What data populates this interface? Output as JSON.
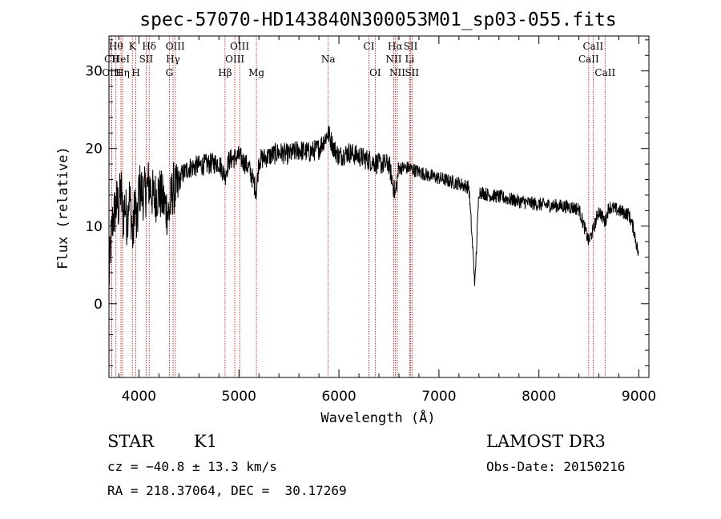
{
  "chart_data": {
    "type": "line",
    "title": "spec-57070-HD143840N300053M01_sp03-055.fits",
    "xlabel": "Wavelength (Å)",
    "ylabel": "Flux (relative)",
    "xlim": [
      3700,
      9100
    ],
    "ylim": [
      -9.5,
      34.5
    ],
    "xticks": [
      4000,
      5000,
      6000,
      7000,
      8000,
      9000
    ],
    "yticks": [
      0,
      10,
      20,
      30
    ],
    "series": [
      {
        "name": "flux",
        "color": "#000000",
        "x": [
          3700,
          3720,
          3740,
          3760,
          3780,
          3800,
          3820,
          3840,
          3860,
          3880,
          3900,
          3920,
          3940,
          3960,
          3980,
          4000,
          4050,
          4100,
          4150,
          4200,
          4250,
          4300,
          4340,
          4380,
          4420,
          4500,
          4600,
          4700,
          4800,
          4861,
          4900,
          5000,
          5100,
          5175,
          5200,
          5300,
          5400,
          5500,
          5600,
          5700,
          5800,
          5893,
          5950,
          6000,
          6100,
          6200,
          6300,
          6400,
          6500,
          6563,
          6600,
          6700,
          6800,
          6900,
          7000,
          7100,
          7200,
          7300,
          7360,
          7400,
          7500,
          7600,
          7700,
          7800,
          7900,
          8000,
          8100,
          8200,
          8300,
          8400,
          8498,
          8542,
          8600,
          8662,
          8700,
          8800,
          8900,
          8950,
          9000
        ],
        "values": [
          3.0,
          8.0,
          11.0,
          12.0,
          13.0,
          12.5,
          15.0,
          11.0,
          13.0,
          10.5,
          14.0,
          12.0,
          8.0,
          14.0,
          9.0,
          15.0,
          14.0,
          15.5,
          13.5,
          14.5,
          13.0,
          11.5,
          15.0,
          14.5,
          16.5,
          17.5,
          17.8,
          18.0,
          18.2,
          16.5,
          18.5,
          19.0,
          17.5,
          14.5,
          18.5,
          19.0,
          19.5,
          19.2,
          19.8,
          19.5,
          20.0,
          22.0,
          20.0,
          19.0,
          19.5,
          19.0,
          18.5,
          18.0,
          18.0,
          14.0,
          17.5,
          17.5,
          17.0,
          16.5,
          16.2,
          15.8,
          15.5,
          15.0,
          2.5,
          14.5,
          14.0,
          13.8,
          13.5,
          13.2,
          13.0,
          12.8,
          12.7,
          12.6,
          12.5,
          12.2,
          8.0,
          9.5,
          12.0,
          10.5,
          12.5,
          12.0,
          11.5,
          9.5,
          6.0
        ]
      }
    ],
    "lines": [
      {
        "label": "CII",
        "wave": 3727,
        "row": 2
      },
      {
        "label": "OIII",
        "wave": 3727,
        "row": 3
      },
      {
        "label": "Hθ",
        "wave": 3770,
        "row": 1
      },
      {
        "label": "Hη",
        "wave": 3836,
        "row": 3
      },
      {
        "label": "HeI",
        "wave": 3820,
        "row": 2
      },
      {
        "label": "K",
        "wave": 3934,
        "row": 1
      },
      {
        "label": "H",
        "wave": 3969,
        "row": 3
      },
      {
        "label": "SII",
        "wave": 4072,
        "row": 2
      },
      {
        "label": "Hδ",
        "wave": 4102,
        "row": 1
      },
      {
        "label": "G",
        "wave": 4304,
        "row": 3
      },
      {
        "label": "OIII",
        "wave": 4363,
        "row": 1
      },
      {
        "label": "Hγ",
        "wave": 4341,
        "row": 2
      },
      {
        "label": "Hβ",
        "wave": 4861,
        "row": 3
      },
      {
        "label": "OIII",
        "wave": 4959,
        "row": 2
      },
      {
        "label": "OIII",
        "wave": 5007,
        "row": 1
      },
      {
        "label": "Mg",
        "wave": 5175,
        "row": 3
      },
      {
        "label": "Na",
        "wave": 5893,
        "row": 2
      },
      {
        "label": "CI",
        "wave": 6300,
        "row": 1
      },
      {
        "label": "OI",
        "wave": 6363,
        "row": 3
      },
      {
        "label": "Hα",
        "wave": 6563,
        "row": 1
      },
      {
        "label": "NII",
        "wave": 6548,
        "row": 2
      },
      {
        "label": "NII",
        "wave": 6584,
        "row": 3
      },
      {
        "label": "SII",
        "wave": 6717,
        "row": 1
      },
      {
        "label": "Li",
        "wave": 6708,
        "row": 2
      },
      {
        "label": "SII",
        "wave": 6731,
        "row": 3
      },
      {
        "label": "CaII",
        "wave": 8498,
        "row": 2
      },
      {
        "label": "CaII",
        "wave": 8542,
        "row": 1
      },
      {
        "label": "CaII",
        "wave": 8662,
        "row": 3
      }
    ],
    "line_color": "#cc0000"
  },
  "info": {
    "object_class": "STAR",
    "subclass": "K1",
    "survey": "LAMOST DR3",
    "cz": "cz = −40.8 ± 13.3 km/s",
    "obs_date": "Obs-Date: 20150216",
    "coords": "RA = 218.37064, DEC =  30.17269"
  }
}
